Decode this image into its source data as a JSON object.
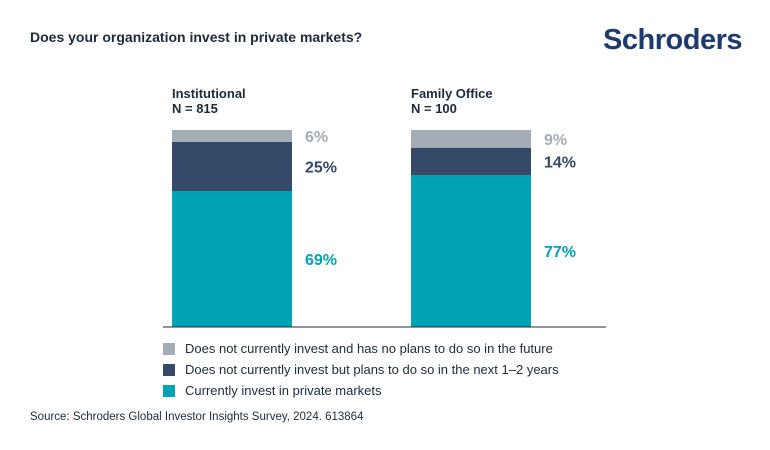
{
  "title": "Does your organization invest in private markets?",
  "logo_text": "Schroders",
  "source": "Source: Schroders Global Investor Insights Survey, 2024. 613864",
  "colors": {
    "gray": "#a4adb6",
    "navy": "#344a68",
    "teal": "#00a3b4"
  },
  "chart_data": {
    "type": "bar",
    "stacked": true,
    "unit": "%",
    "categories": [
      "Institutional",
      "Family Office"
    ],
    "category_n": [
      "N = 815",
      "N = 100"
    ],
    "series": [
      {
        "name": "Currently invest in private markets",
        "values": [
          69,
          77
        ],
        "color": "#00a3b4"
      },
      {
        "name": "Does not currently invest but plans to do so in the next 1–2 years",
        "values": [
          25,
          14
        ],
        "color": "#344a68"
      },
      {
        "name": "Does not currently invest and has no plans to do so in the future",
        "values": [
          6,
          9
        ],
        "color": "#a4adb6"
      }
    ],
    "value_labels": [
      [
        "69%",
        "25%",
        "6%"
      ],
      [
        "77%",
        "14%",
        "9%"
      ]
    ],
    "legend": [
      {
        "label": "Does not currently invest and has no plans to do so in the future",
        "color": "#a4adb6"
      },
      {
        "label": "Does not currently invest but plans to do so in the next 1–2 years",
        "color": "#344a68"
      },
      {
        "label": "Currently invest in private markets",
        "color": "#00a3b4"
      }
    ],
    "ylim": [
      0,
      100
    ],
    "legend_position": "bottom"
  }
}
